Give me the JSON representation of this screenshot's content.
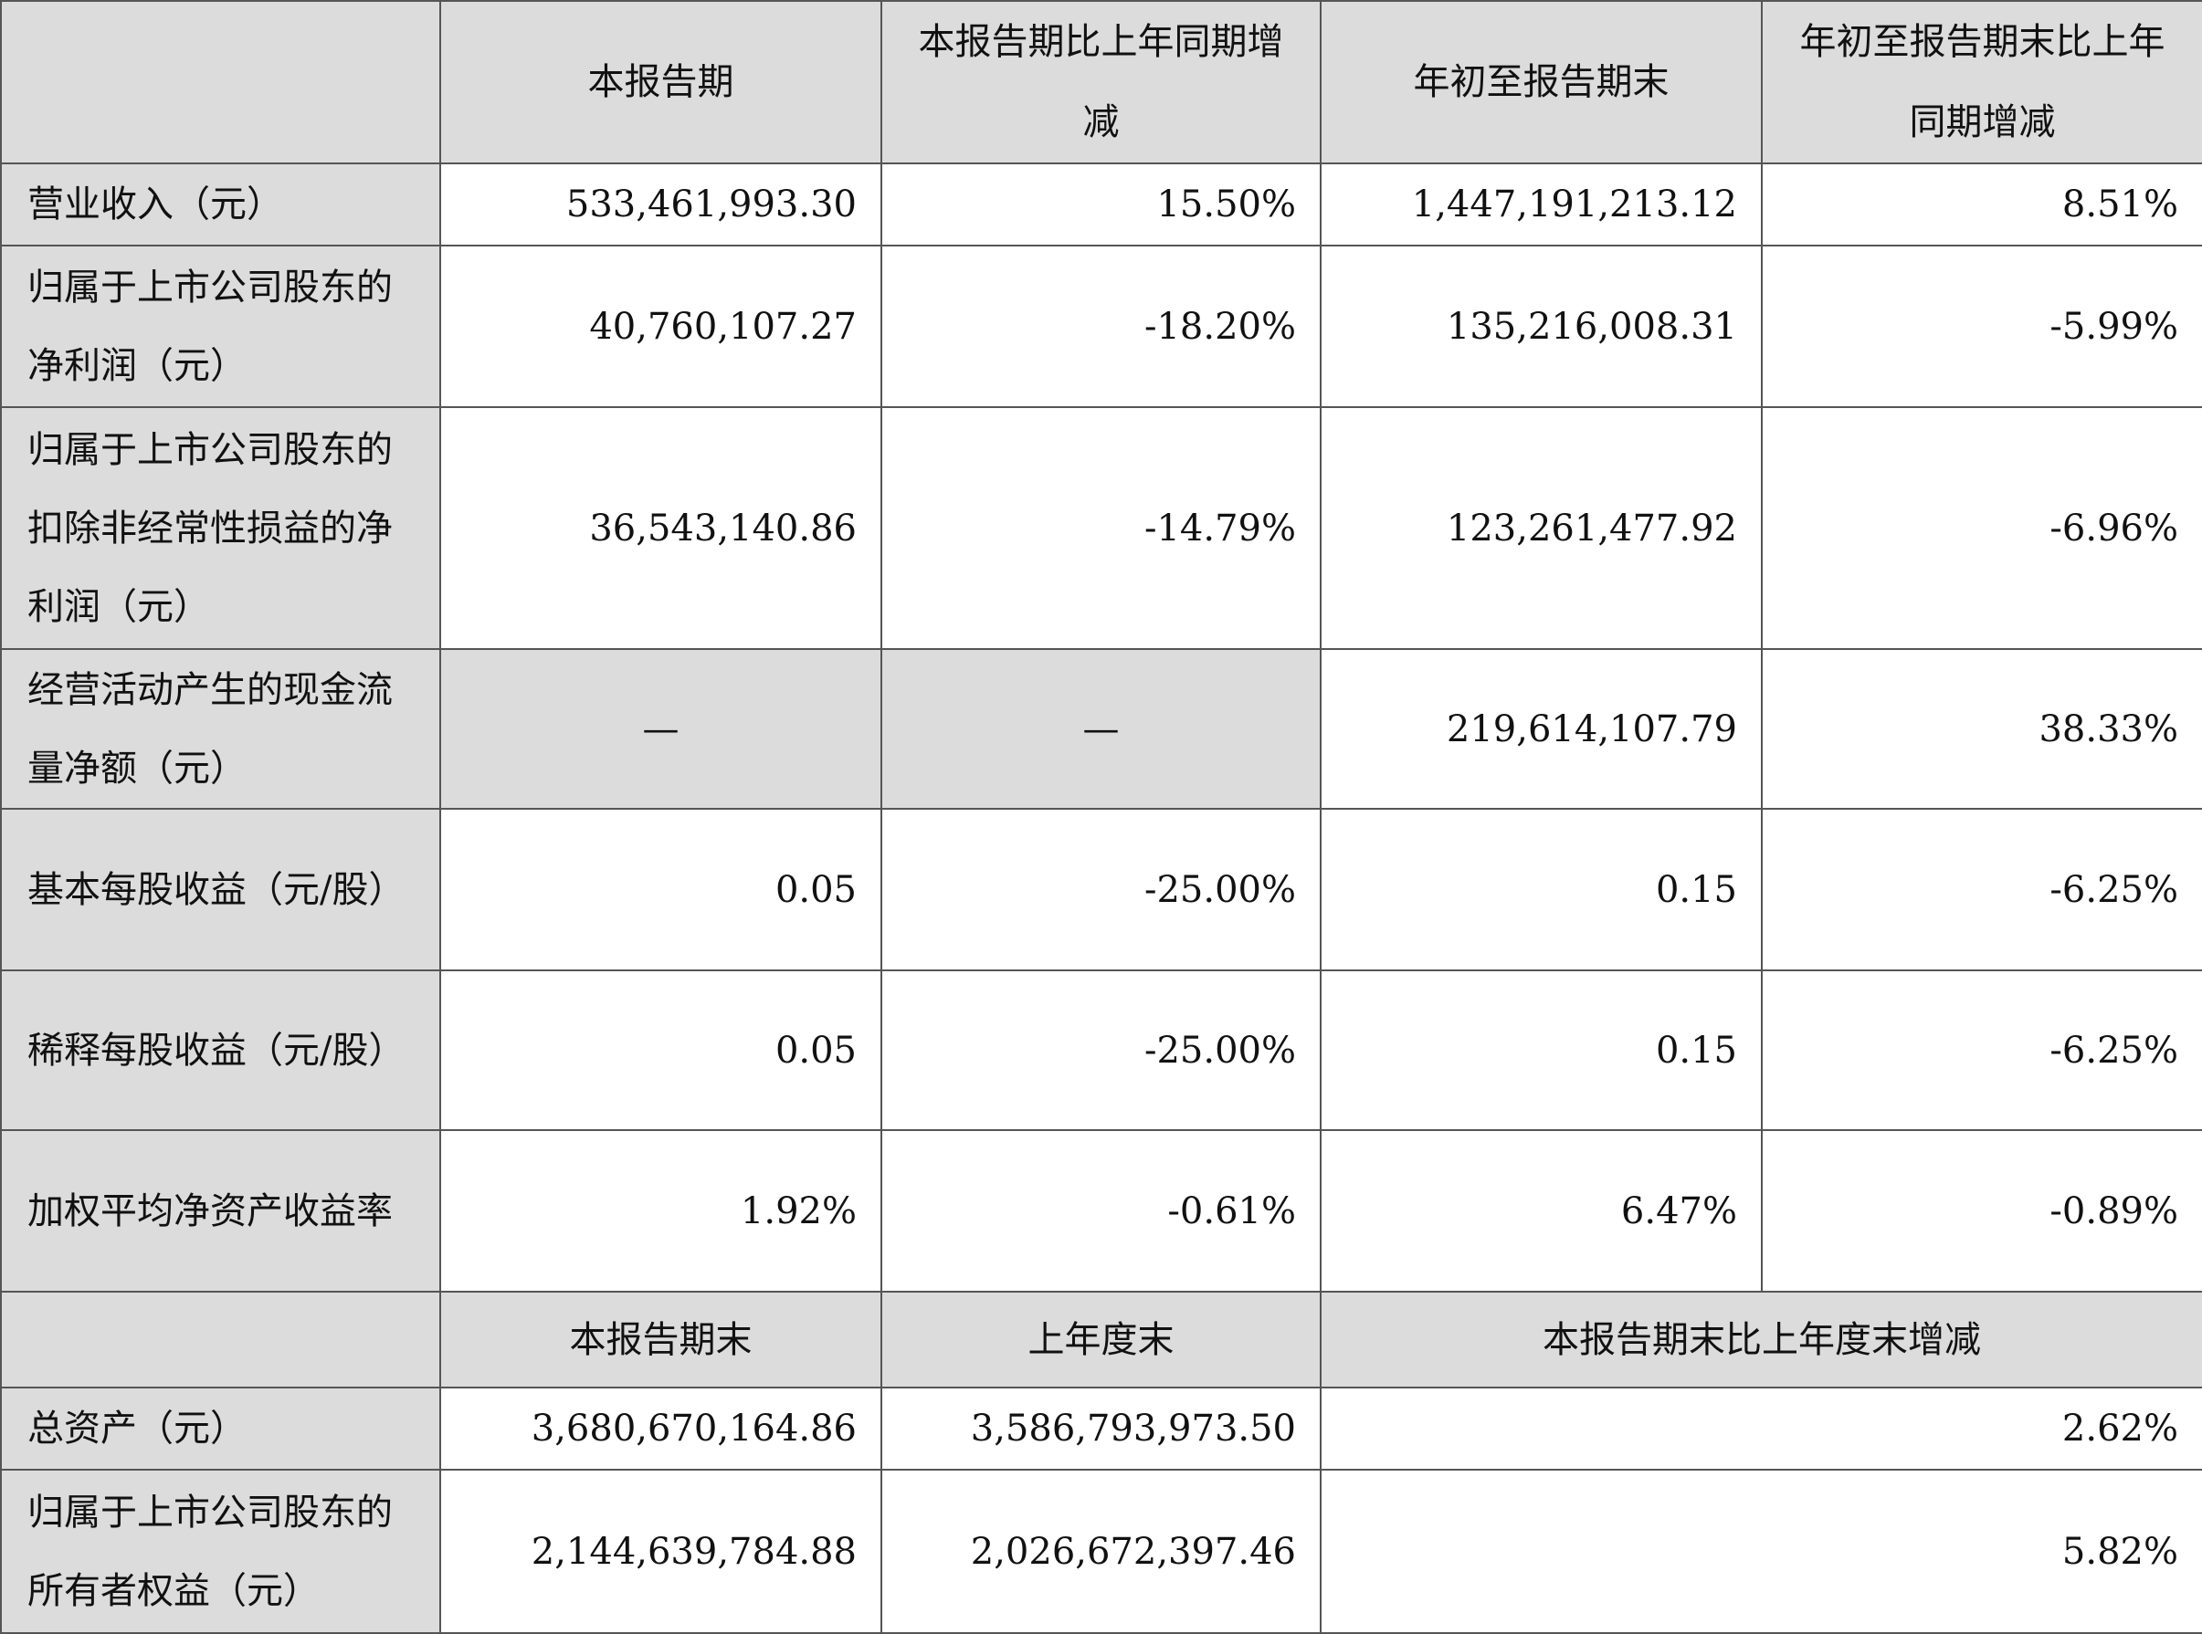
{
  "header": [
    "",
    "本报告期",
    "本报告期比上年同期增减",
    "年初至报告期末",
    "年初至报告期末比上年同期增减"
  ],
  "rows": [
    {
      "label": "营业收入（元）",
      "values": [
        "533,461,993.30",
        "15.50%",
        "1,447,191,213.12",
        "8.51%"
      ]
    },
    {
      "label": "归属于上市公司股东的净利润（元）",
      "values": [
        "40,760,107.27",
        "-18.20%",
        "135,216,008.31",
        "-5.99%"
      ]
    },
    {
      "label": "归属于上市公司股东的扣除非经常性损益的净利润（元）",
      "values": [
        "36,543,140.86",
        "-14.79%",
        "123,261,477.92",
        "-6.96%"
      ]
    },
    {
      "label": "经营活动产生的现金流量净额（元）",
      "values": [
        "—",
        "—",
        "219,614,107.79",
        "38.33%"
      ]
    },
    {
      "label": "基本每股收益（元/股）",
      "values": [
        "0.05",
        "-25.00%",
        "0.15",
        "-6.25%"
      ]
    },
    {
      "label": "稀释每股收益（元/股）",
      "values": [
        "0.05",
        "-25.00%",
        "0.15",
        "-6.25%"
      ]
    },
    {
      "label": "加权平均净资产收益率",
      "values": [
        "1.92%",
        "-0.61%",
        "6.47%",
        "-0.89%"
      ]
    }
  ],
  "header2": [
    "",
    "本报告期末",
    "上年度末",
    "本报告期末比上年度末增减"
  ],
  "rows2": [
    {
      "label": "总资产（元）",
      "values": [
        "3,680,670,164.86",
        "3,586,793,973.50",
        "2.62%"
      ]
    },
    {
      "label": "归属于上市公司股东的所有者权益（元）",
      "values": [
        "2,144,639,784.88",
        "2,026,672,397.46",
        "5.82%"
      ]
    }
  ]
}
